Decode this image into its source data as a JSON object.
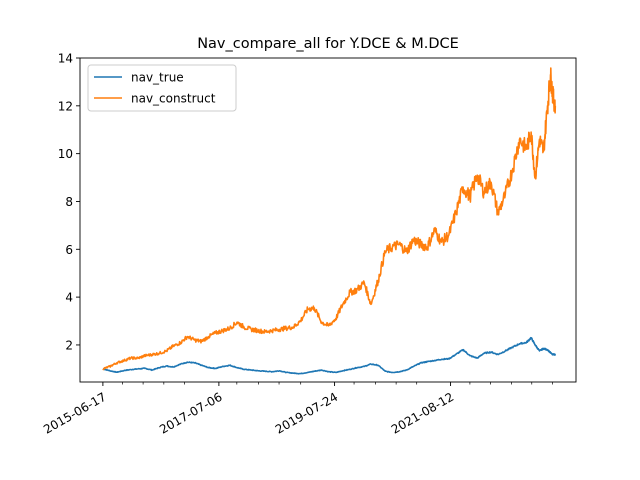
{
  "chart_data": {
    "type": "line",
    "title": "Nav_compare_all for Y.DCE & M.DCE",
    "xlabel": "",
    "ylabel": "",
    "x_range": [
      "2015-01-20",
      "2023-11-01"
    ],
    "xlim_dates": [
      "2015-01-20",
      "2023-11-01"
    ],
    "ylim": [
      0.45,
      14.0
    ],
    "y_ticks": [
      2,
      4,
      6,
      8,
      10,
      12,
      14
    ],
    "x_tick_labels": [
      "2015-06-17",
      "2017-07-06",
      "2019-07-24",
      "2021-08-12"
    ],
    "x_tick_dates": [
      "2015-06-17",
      "2017-07-06",
      "2019-07-24",
      "2021-08-12"
    ],
    "x_minor_tick_dates": [
      "2015-10-21",
      "2016-03-03",
      "2016-07-15",
      "2016-11-25",
      "2017-10-30",
      "2018-03-19",
      "2018-07-30",
      "2018-12-17",
      "2019-11-27",
      "2020-04-14",
      "2020-08-25",
      "2021-01-05",
      "2021-12-15",
      "2022-04-28",
      "2022-09-09",
      "2023-01-19",
      "2023-06-01"
    ],
    "legend_position": "upper-left",
    "grid": false,
    "series": [
      {
        "name": "nav_true",
        "color": "#1f77b4",
        "points": [
          [
            "2015-06-17",
            1.0
          ],
          [
            "2015-08-01",
            0.92
          ],
          [
            "2015-09-15",
            0.86
          ],
          [
            "2015-11-01",
            0.93
          ],
          [
            "2015-12-15",
            0.97
          ],
          [
            "2016-02-01",
            1.0
          ],
          [
            "2016-03-15",
            1.02
          ],
          [
            "2016-05-01",
            0.95
          ],
          [
            "2016-06-15",
            1.05
          ],
          [
            "2016-08-01",
            1.12
          ],
          [
            "2016-09-15",
            1.08
          ],
          [
            "2016-11-01",
            1.2
          ],
          [
            "2016-12-15",
            1.28
          ],
          [
            "2017-02-01",
            1.25
          ],
          [
            "2017-03-15",
            1.15
          ],
          [
            "2017-05-01",
            1.05
          ],
          [
            "2017-06-15",
            1.02
          ],
          [
            "2017-08-01",
            1.1
          ],
          [
            "2017-09-15",
            1.15
          ],
          [
            "2017-11-01",
            1.05
          ],
          [
            "2017-12-15",
            0.98
          ],
          [
            "2018-02-01",
            0.95
          ],
          [
            "2018-03-15",
            0.92
          ],
          [
            "2018-05-01",
            0.9
          ],
          [
            "2018-06-15",
            0.88
          ],
          [
            "2018-08-01",
            0.92
          ],
          [
            "2018-09-15",
            0.85
          ],
          [
            "2018-11-01",
            0.82
          ],
          [
            "2018-12-15",
            0.8
          ],
          [
            "2019-02-01",
            0.85
          ],
          [
            "2019-03-15",
            0.9
          ],
          [
            "2019-05-01",
            0.95
          ],
          [
            "2019-06-15",
            0.88
          ],
          [
            "2019-08-01",
            0.85
          ],
          [
            "2019-09-15",
            0.92
          ],
          [
            "2019-11-01",
            0.98
          ],
          [
            "2019-12-15",
            1.05
          ],
          [
            "2020-02-01",
            1.1
          ],
          [
            "2020-03-15",
            1.2
          ],
          [
            "2020-05-01",
            1.15
          ],
          [
            "2020-06-15",
            0.9
          ],
          [
            "2020-08-01",
            0.85
          ],
          [
            "2020-09-15",
            0.88
          ],
          [
            "2020-11-01",
            0.95
          ],
          [
            "2020-12-15",
            1.1
          ],
          [
            "2021-02-01",
            1.25
          ],
          [
            "2021-03-15",
            1.3
          ],
          [
            "2021-05-01",
            1.35
          ],
          [
            "2021-06-15",
            1.4
          ],
          [
            "2021-08-01",
            1.42
          ],
          [
            "2021-09-15",
            1.6
          ],
          [
            "2021-11-01",
            1.8
          ],
          [
            "2021-12-15",
            1.55
          ],
          [
            "2022-02-01",
            1.45
          ],
          [
            "2022-03-15",
            1.65
          ],
          [
            "2022-05-01",
            1.7
          ],
          [
            "2022-06-15",
            1.6
          ],
          [
            "2022-08-01",
            1.75
          ],
          [
            "2022-09-15",
            1.9
          ],
          [
            "2022-11-01",
            2.05
          ],
          [
            "2022-12-15",
            2.1
          ],
          [
            "2023-01-15",
            2.3
          ],
          [
            "2023-02-10",
            2.0
          ],
          [
            "2023-03-10",
            1.75
          ],
          [
            "2023-04-05",
            1.85
          ],
          [
            "2023-05-01",
            1.8
          ],
          [
            "2023-06-01",
            1.6
          ],
          [
            "2023-06-20",
            1.6
          ]
        ]
      },
      {
        "name": "nav_construct",
        "color": "#ff7f0e",
        "points": [
          [
            "2015-06-17",
            1.0
          ],
          [
            "2015-08-01",
            1.1
          ],
          [
            "2015-09-15",
            1.25
          ],
          [
            "2015-11-01",
            1.35
          ],
          [
            "2015-12-15",
            1.45
          ],
          [
            "2016-02-01",
            1.45
          ],
          [
            "2016-03-15",
            1.55
          ],
          [
            "2016-05-01",
            1.6
          ],
          [
            "2016-06-15",
            1.65
          ],
          [
            "2016-08-01",
            1.75
          ],
          [
            "2016-09-15",
            1.95
          ],
          [
            "2016-11-01",
            2.1
          ],
          [
            "2016-12-15",
            2.35
          ],
          [
            "2017-02-01",
            2.2
          ],
          [
            "2017-03-15",
            2.15
          ],
          [
            "2017-05-01",
            2.35
          ],
          [
            "2017-06-15",
            2.5
          ],
          [
            "2017-08-01",
            2.6
          ],
          [
            "2017-09-15",
            2.7
          ],
          [
            "2017-11-01",
            2.95
          ],
          [
            "2017-12-15",
            2.75
          ],
          [
            "2018-02-01",
            2.65
          ],
          [
            "2018-03-15",
            2.6
          ],
          [
            "2018-05-01",
            2.55
          ],
          [
            "2018-06-15",
            2.6
          ],
          [
            "2018-08-01",
            2.65
          ],
          [
            "2018-09-15",
            2.7
          ],
          [
            "2018-11-01",
            2.75
          ],
          [
            "2018-12-15",
            3.0
          ],
          [
            "2019-02-01",
            3.5
          ],
          [
            "2019-03-15",
            3.55
          ],
          [
            "2019-05-01",
            2.95
          ],
          [
            "2019-06-15",
            2.8
          ],
          [
            "2019-08-01",
            3.1
          ],
          [
            "2019-09-15",
            3.7
          ],
          [
            "2019-11-01",
            4.2
          ],
          [
            "2019-12-15",
            4.3
          ],
          [
            "2020-02-01",
            4.6
          ],
          [
            "2020-03-15",
            3.7
          ],
          [
            "2020-05-01",
            4.7
          ],
          [
            "2020-06-15",
            5.9
          ],
          [
            "2020-08-01",
            6.1
          ],
          [
            "2020-09-15",
            6.2
          ],
          [
            "2020-11-01",
            5.9
          ],
          [
            "2020-12-15",
            6.4
          ],
          [
            "2021-02-01",
            6.2
          ],
          [
            "2021-03-15",
            6.1
          ],
          [
            "2021-05-01",
            6.8
          ],
          [
            "2021-06-15",
            6.3
          ],
          [
            "2021-08-01",
            6.6
          ],
          [
            "2021-09-15",
            7.5
          ],
          [
            "2021-11-01",
            8.6
          ],
          [
            "2021-12-15",
            8.2
          ],
          [
            "2022-02-01",
            9.1
          ],
          [
            "2022-03-15",
            8.4
          ],
          [
            "2022-05-01",
            8.8
          ],
          [
            "2022-06-15",
            7.5
          ],
          [
            "2022-08-01",
            8.3
          ],
          [
            "2022-09-15",
            9.3
          ],
          [
            "2022-11-01",
            10.6
          ],
          [
            "2022-12-15",
            10.2
          ],
          [
            "2023-01-15",
            10.9
          ],
          [
            "2023-02-10",
            9.0
          ],
          [
            "2023-03-10",
            10.6
          ],
          [
            "2023-04-05",
            10.1
          ],
          [
            "2023-05-01",
            12.0
          ],
          [
            "2023-05-20",
            13.3
          ],
          [
            "2023-06-05",
            12.4
          ],
          [
            "2023-06-20",
            12.0
          ]
        ]
      }
    ]
  }
}
